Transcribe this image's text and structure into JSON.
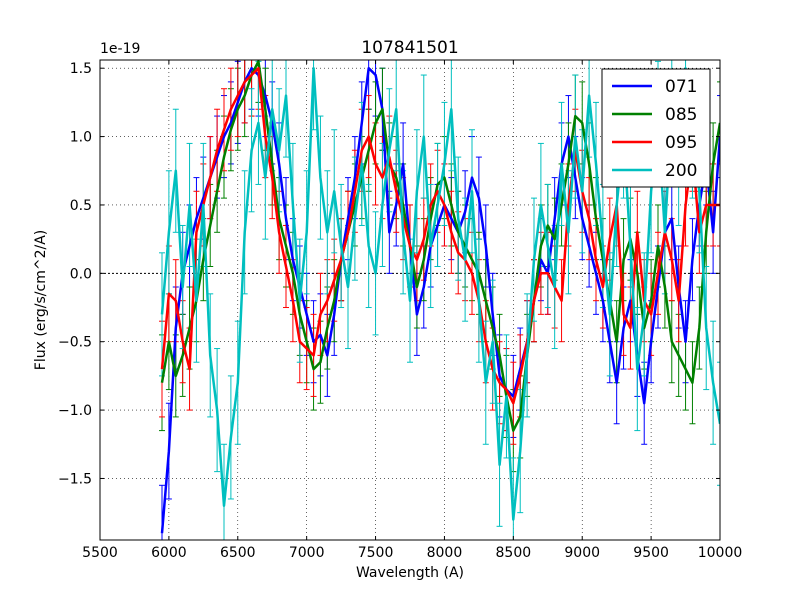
{
  "chart_data": {
    "type": "line",
    "title": "107841501",
    "xlabel": "Wavelength (A)",
    "ylabel": "Flux (erg/s/cm^2/A)",
    "y_offset_label": "1e-19",
    "xlim": [
      5500,
      10000
    ],
    "ylim": [
      -1.95,
      1.56
    ],
    "x_ticks": [
      5500,
      6000,
      6500,
      7000,
      7500,
      8000,
      8500,
      9000,
      9500,
      10000
    ],
    "x_tick_labels": [
      "5500",
      "6000",
      "6500",
      "7000",
      "7500",
      "8000",
      "8500",
      "9000",
      "9500",
      "10000"
    ],
    "y_ticks": [
      -1.5,
      -1.0,
      -0.5,
      0.0,
      0.5,
      1.0,
      1.5
    ],
    "y_tick_labels": [
      "−1.5",
      "−1.0",
      "−0.5",
      "0.0",
      "0.5",
      "1.0",
      "1.5"
    ],
    "grid": true,
    "legend_position": "top-right",
    "zero_line": true,
    "series": [
      {
        "name": "071",
        "color": "#0000ff",
        "x": [
          5950,
          6000,
          6050,
          6100,
          6150,
          6200,
          6250,
          6300,
          6350,
          6400,
          6450,
          6500,
          6550,
          6600,
          6650,
          6700,
          6750,
          6800,
          6850,
          6900,
          6950,
          7000,
          7050,
          7100,
          7150,
          7200,
          7250,
          7300,
          7350,
          7400,
          7450,
          7500,
          7550,
          7600,
          7650,
          7700,
          7750,
          7800,
          7850,
          7900,
          7950,
          8000,
          8050,
          8100,
          8150,
          8200,
          8250,
          8300,
          8350,
          8400,
          8450,
          8500,
          8550,
          8600,
          8650,
          8700,
          8750,
          8800,
          8850,
          8900,
          8950,
          9000,
          9050,
          9100,
          9150,
          9200,
          9250,
          9300,
          9350,
          9400,
          9450,
          9500,
          9550,
          9600,
          9650,
          9700,
          9750,
          9800,
          9850,
          9900,
          9950,
          10000
        ],
        "y": [
          -1.9,
          -1.3,
          -0.4,
          0.0,
          0.2,
          0.4,
          0.55,
          0.7,
          0.85,
          1.0,
          1.1,
          1.25,
          1.4,
          1.5,
          1.45,
          1.3,
          1.1,
          0.8,
          0.4,
          0.1,
          -0.1,
          -0.3,
          -0.5,
          -0.45,
          -0.6,
          -0.3,
          0.1,
          0.4,
          0.7,
          1.1,
          1.5,
          1.45,
          1.2,
          0.3,
          0.5,
          0.8,
          0.2,
          -0.3,
          -0.1,
          0.2,
          0.35,
          0.5,
          0.4,
          0.3,
          0.45,
          0.7,
          0.55,
          0.2,
          -0.3,
          -0.75,
          -0.85,
          -0.9,
          -0.7,
          -0.5,
          -0.2,
          0.1,
          0.0,
          0.4,
          0.8,
          1.0,
          0.7,
          0.4,
          0.2,
          0.0,
          -0.2,
          -0.5,
          -0.8,
          -0.4,
          -0.2,
          -0.6,
          -0.95,
          -0.5,
          -0.1,
          0.3,
          0.4,
          -0.1,
          -0.5,
          0.1,
          0.5,
          0.8,
          0.3,
          1.0
        ],
        "err": [
          0.35,
          0.35,
          0.3,
          0.3,
          0.3,
          0.3,
          0.3,
          0.3,
          0.3,
          0.3,
          0.3,
          0.3,
          0.3,
          0.3,
          0.3,
          0.3,
          0.3,
          0.3,
          0.3,
          0.3,
          0.3,
          0.3,
          0.3,
          0.3,
          0.3,
          0.3,
          0.3,
          0.3,
          0.3,
          0.3,
          0.3,
          0.3,
          0.3,
          0.3,
          0.3,
          0.3,
          0.3,
          0.3,
          0.3,
          0.3,
          0.3,
          0.3,
          0.3,
          0.3,
          0.3,
          0.3,
          0.3,
          0.3,
          0.3,
          0.3,
          0.3,
          0.3,
          0.3,
          0.3,
          0.3,
          0.3,
          0.3,
          0.3,
          0.3,
          0.3,
          0.3,
          0.3,
          0.3,
          0.3,
          0.3,
          0.3,
          0.3,
          0.3,
          0.3,
          0.3,
          0.3,
          0.3,
          0.3,
          0.3,
          0.3,
          0.3,
          0.3,
          0.3,
          0.3,
          0.3,
          0.3,
          0.3
        ]
      },
      {
        "name": "085",
        "color": "#008000",
        "x": [
          5950,
          6000,
          6050,
          6100,
          6150,
          6200,
          6250,
          6300,
          6350,
          6400,
          6450,
          6500,
          6550,
          6600,
          6650,
          6700,
          6750,
          6800,
          6850,
          6900,
          6950,
          7000,
          7050,
          7100,
          7150,
          7200,
          7250,
          7300,
          7350,
          7400,
          7450,
          7500,
          7550,
          7600,
          7650,
          7700,
          7750,
          7800,
          7850,
          7900,
          7950,
          8000,
          8050,
          8100,
          8150,
          8200,
          8250,
          8300,
          8350,
          8400,
          8450,
          8500,
          8550,
          8600,
          8650,
          8700,
          8750,
          8800,
          8850,
          8900,
          8950,
          9000,
          9050,
          9100,
          9150,
          9200,
          9250,
          9300,
          9350,
          9400,
          9450,
          9500,
          9550,
          9600,
          9650,
          9700,
          9750,
          9800,
          9850,
          9900,
          9950,
          10000
        ],
        "y": [
          -0.8,
          -0.5,
          -0.75,
          -0.6,
          -0.4,
          -0.2,
          0.1,
          0.35,
          0.6,
          0.85,
          1.05,
          1.2,
          1.3,
          1.45,
          1.55,
          1.2,
          0.8,
          0.4,
          0.2,
          0.0,
          -0.3,
          -0.5,
          -0.7,
          -0.65,
          -0.4,
          -0.2,
          0.1,
          0.3,
          0.5,
          0.7,
          0.9,
          1.1,
          1.2,
          0.8,
          0.7,
          0.5,
          0.2,
          -0.1,
          0.1,
          0.4,
          0.65,
          0.7,
          0.5,
          0.3,
          0.2,
          0.1,
          0.0,
          -0.2,
          -0.4,
          -0.6,
          -0.9,
          -1.15,
          -1.05,
          -0.6,
          -0.2,
          0.2,
          0.35,
          0.25,
          0.5,
          0.8,
          1.15,
          1.1,
          0.8,
          0.4,
          0.1,
          -0.2,
          -0.5,
          0.1,
          0.25,
          0.0,
          -0.4,
          -0.2,
          0.2,
          -0.1,
          -0.5,
          -0.6,
          -0.7,
          -0.8,
          -0.4,
          0.3,
          0.8,
          1.1
        ],
        "err": [
          0.35,
          0.35,
          0.3,
          0.3,
          0.3,
          0.3,
          0.3,
          0.3,
          0.3,
          0.3,
          0.3,
          0.3,
          0.3,
          0.3,
          0.3,
          0.3,
          0.3,
          0.3,
          0.3,
          0.3,
          0.3,
          0.3,
          0.3,
          0.3,
          0.3,
          0.3,
          0.3,
          0.3,
          0.3,
          0.3,
          0.3,
          0.3,
          0.3,
          0.3,
          0.3,
          0.3,
          0.3,
          0.3,
          0.3,
          0.3,
          0.3,
          0.3,
          0.3,
          0.3,
          0.3,
          0.3,
          0.3,
          0.3,
          0.3,
          0.3,
          0.3,
          0.3,
          0.3,
          0.3,
          0.3,
          0.3,
          0.3,
          0.3,
          0.3,
          0.3,
          0.3,
          0.3,
          0.3,
          0.3,
          0.3,
          0.3,
          0.3,
          0.3,
          0.3,
          0.3,
          0.3,
          0.3,
          0.3,
          0.3,
          0.3,
          0.3,
          0.3,
          0.3,
          0.3,
          0.3,
          0.3,
          0.3
        ]
      },
      {
        "name": "095",
        "color": "#ff0000",
        "x": [
          5950,
          6000,
          6050,
          6100,
          6150,
          6200,
          6250,
          6300,
          6350,
          6400,
          6450,
          6500,
          6550,
          6600,
          6650,
          6700,
          6750,
          6800,
          6850,
          6900,
          6950,
          7000,
          7050,
          7100,
          7150,
          7200,
          7250,
          7300,
          7350,
          7400,
          7450,
          7500,
          7550,
          7600,
          7650,
          7700,
          7750,
          7800,
          7850,
          7900,
          7950,
          8000,
          8050,
          8100,
          8150,
          8200,
          8250,
          8300,
          8350,
          8400,
          8450,
          8500,
          8550,
          8600,
          8650,
          8700,
          8750,
          8800,
          8850,
          8900,
          8950,
          9000,
          9050,
          9100,
          9150,
          9200,
          9250,
          9300,
          9350,
          9400,
          9450,
          9500,
          9550,
          9600,
          9650,
          9700,
          9750,
          9800,
          9850,
          9900,
          9950,
          10000
        ],
        "y": [
          -0.7,
          -0.15,
          -0.2,
          -0.5,
          -0.7,
          0.3,
          0.5,
          0.7,
          0.9,
          1.05,
          1.2,
          1.3,
          1.4,
          1.45,
          1.5,
          1.0,
          0.7,
          0.3,
          0.05,
          -0.2,
          -0.5,
          -0.55,
          -0.6,
          -0.3,
          -0.2,
          -0.05,
          0.1,
          0.3,
          0.6,
          0.9,
          1.0,
          0.8,
          0.7,
          0.85,
          0.6,
          0.4,
          0.2,
          0.1,
          0.25,
          0.5,
          0.6,
          0.5,
          0.3,
          0.15,
          0.1,
          0.0,
          -0.2,
          -0.5,
          -0.7,
          -0.8,
          -0.85,
          -0.95,
          -0.75,
          -0.5,
          -0.2,
          0.0,
          0.0,
          -0.1,
          -0.2,
          0.5,
          0.9,
          0.6,
          0.4,
          0.1,
          -0.1,
          0.25,
          0.5,
          -0.3,
          -0.4,
          0.3,
          -0.2,
          -0.3,
          0.0,
          0.3,
          0.1,
          -0.2,
          0.5,
          0.9,
          0.3,
          0.5,
          0.5,
          0.5
        ],
        "err": [
          0.35,
          0.35,
          0.3,
          0.3,
          0.3,
          0.3,
          0.3,
          0.3,
          0.3,
          0.3,
          0.3,
          0.3,
          0.3,
          0.3,
          0.3,
          0.3,
          0.3,
          0.3,
          0.3,
          0.3,
          0.3,
          0.3,
          0.3,
          0.3,
          0.3,
          0.3,
          0.3,
          0.3,
          0.3,
          0.3,
          0.3,
          0.3,
          0.3,
          0.3,
          0.3,
          0.3,
          0.3,
          0.3,
          0.3,
          0.3,
          0.3,
          0.3,
          0.3,
          0.3,
          0.3,
          0.3,
          0.3,
          0.3,
          0.3,
          0.3,
          0.3,
          0.3,
          0.3,
          0.3,
          0.3,
          0.3,
          0.3,
          0.3,
          0.3,
          0.3,
          0.3,
          0.3,
          0.3,
          0.3,
          0.3,
          0.3,
          0.3,
          0.3,
          0.3,
          0.3,
          0.3,
          0.3,
          0.3,
          0.3,
          0.3,
          0.3,
          0.3,
          0.3,
          0.3,
          0.3,
          0.3,
          0.3
        ]
      },
      {
        "name": "200",
        "color": "#00bfbf",
        "x": [
          5950,
          6000,
          6050,
          6100,
          6150,
          6200,
          6250,
          6300,
          6350,
          6400,
          6450,
          6500,
          6550,
          6600,
          6650,
          6700,
          6750,
          6800,
          6850,
          6900,
          6950,
          7000,
          7050,
          7100,
          7150,
          7200,
          7250,
          7300,
          7350,
          7400,
          7450,
          7500,
          7550,
          7600,
          7650,
          7700,
          7750,
          7800,
          7850,
          7900,
          7950,
          8000,
          8050,
          8100,
          8150,
          8200,
          8250,
          8300,
          8350,
          8400,
          8450,
          8500,
          8550,
          8600,
          8650,
          8700,
          8750,
          8800,
          8850,
          8900,
          8950,
          9000,
          9050,
          9100,
          9150,
          9200,
          9250,
          9300,
          9350,
          9400,
          9450,
          9500,
          9550,
          9600,
          9650,
          9700,
          9750,
          9800,
          9850,
          9900,
          9950,
          10000
        ],
        "y": [
          -0.3,
          0.3,
          0.75,
          -0.1,
          0.5,
          -0.2,
          0.5,
          -0.6,
          -1.0,
          -1.7,
          -1.2,
          -0.8,
          0.3,
          0.9,
          1.1,
          0.7,
          1.2,
          0.9,
          1.3,
          0.5,
          -0.2,
          0.3,
          1.5,
          0.7,
          0.3,
          0.6,
          0.2,
          -0.1,
          0.4,
          0.8,
          0.2,
          0.0,
          0.5,
          0.9,
          1.2,
          0.3,
          -0.2,
          0.6,
          1.0,
          0.2,
          0.5,
          0.8,
          1.2,
          0.4,
          0.1,
          0.6,
          -0.2,
          -0.8,
          -0.5,
          -1.4,
          -0.9,
          -1.8,
          -1.3,
          -0.6,
          0.1,
          0.5,
          0.2,
          -0.1,
          0.8,
          0.3,
          1.0,
          0.6,
          1.3,
          0.8,
          0.2,
          -0.3,
          0.5,
          1.0,
          0.2,
          -0.7,
          -0.3,
          0.6,
          1.1,
          0.3,
          1.2,
          0.8,
          1.5,
          1.0,
          0.6,
          -0.4,
          -0.8,
          -1.1
        ],
        "err": [
          0.45,
          0.45,
          0.45,
          0.45,
          0.45,
          0.45,
          0.45,
          0.45,
          0.45,
          0.45,
          0.45,
          0.45,
          0.45,
          0.45,
          0.45,
          0.45,
          0.45,
          0.45,
          0.45,
          0.45,
          0.45,
          0.45,
          0.45,
          0.45,
          0.45,
          0.45,
          0.45,
          0.45,
          0.45,
          0.45,
          0.45,
          0.45,
          0.45,
          0.45,
          0.45,
          0.45,
          0.45,
          0.45,
          0.45,
          0.45,
          0.45,
          0.45,
          0.45,
          0.45,
          0.45,
          0.45,
          0.45,
          0.45,
          0.45,
          0.45,
          0.45,
          0.45,
          0.45,
          0.45,
          0.45,
          0.45,
          0.45,
          0.45,
          0.45,
          0.45,
          0.45,
          0.45,
          0.45,
          0.45,
          0.45,
          0.45,
          0.45,
          0.45,
          0.45,
          0.45,
          0.45,
          0.45,
          0.45,
          0.45,
          0.45,
          0.45,
          0.45,
          0.45,
          0.45,
          0.45,
          0.45,
          0.45
        ]
      }
    ]
  }
}
